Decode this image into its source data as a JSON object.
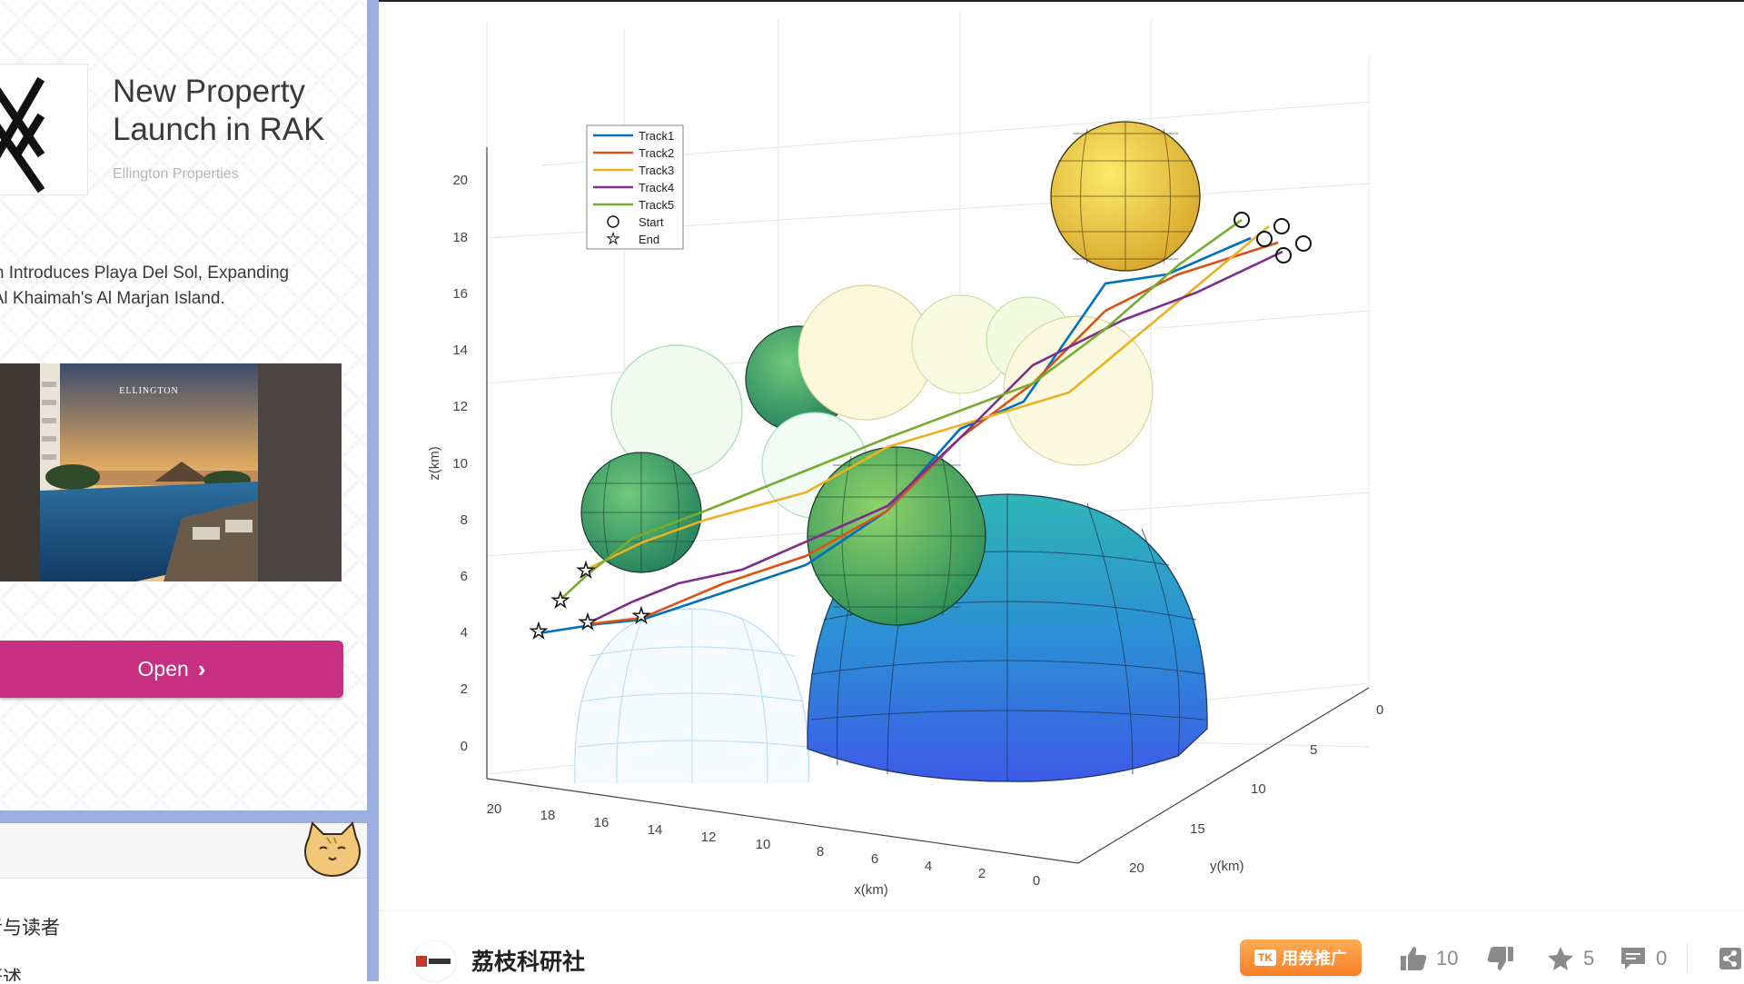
{
  "ad": {
    "title": "New Property Launch in RAK",
    "advertiser": "Ellington Properties",
    "description_line1": "ton Introduces Playa Del Sol, Expanding",
    "description_line2": "s Al Khaimah's Al Marjan Island.",
    "image_brand": "ELLINGTON",
    "open_label": "Open"
  },
  "toc": {
    "item1": "者与读者",
    "item2": "概述"
  },
  "chart": {
    "zlabel": "z(km)",
    "xlabel": "x(km)",
    "ylabel": "y(km)",
    "z_ticks": [
      "0",
      "2",
      "4",
      "6",
      "8",
      "10",
      "12",
      "14",
      "16",
      "18",
      "20"
    ],
    "x_ticks": [
      "20",
      "18",
      "16",
      "14",
      "12",
      "10",
      "8",
      "6",
      "4",
      "2",
      "0"
    ],
    "y_ticks": [
      "0",
      "5",
      "10",
      "15",
      "20"
    ],
    "legend": {
      "track1": "Track1",
      "track2": "Track2",
      "track3": "Track3",
      "track4": "Track4",
      "track5": "Track5",
      "start": "Start",
      "end": "End"
    }
  },
  "chart_data": {
    "type": "line",
    "title": "",
    "xlabel": "x(km)",
    "ylabel": "y(km)",
    "zlabel": "z(km)",
    "xlim": [
      0,
      20
    ],
    "ylim": [
      0,
      20
    ],
    "zlim": [
      0,
      20
    ],
    "grid": true,
    "legend_position": "top-left",
    "series": [
      {
        "name": "Track1",
        "color": "#0072BD"
      },
      {
        "name": "Track2",
        "color": "#D95319"
      },
      {
        "name": "Track3",
        "color": "#EDB120"
      },
      {
        "name": "Track4",
        "color": "#7E2F8E"
      },
      {
        "name": "Track5",
        "color": "#77AC30"
      }
    ],
    "markers": [
      "Start",
      "End"
    ]
  },
  "footer": {
    "author": "荔枝科研社",
    "coupon": "用券推广",
    "coupon_tag": "TK",
    "likes": "10",
    "stars": "5",
    "comments": "0"
  },
  "colors": {
    "accent": "#c72f83",
    "divider": "#9aaee0",
    "coupon": "#f77f28"
  }
}
